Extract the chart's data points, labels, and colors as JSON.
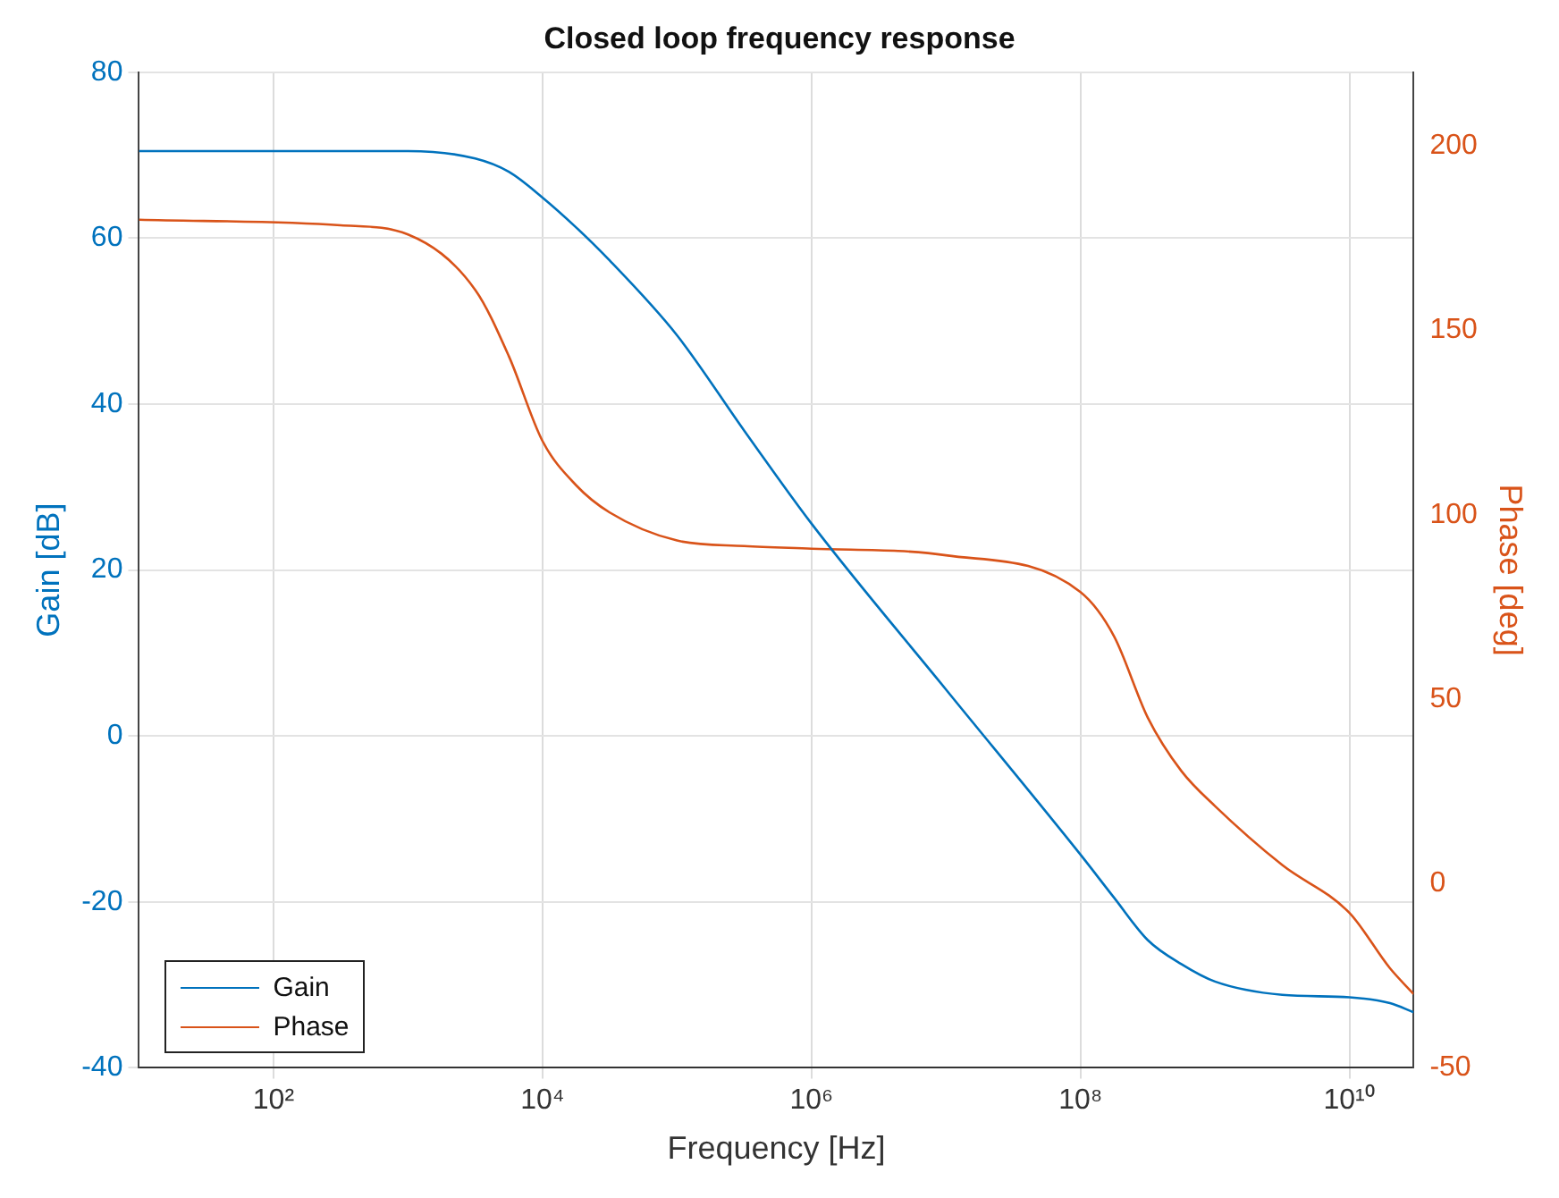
{
  "chart_data": {
    "type": "line",
    "title": "Closed loop frequency response",
    "xlabel": "Frequency [Hz]",
    "ylabel": "Gain [dB]",
    "y2label": "Phase [deg]",
    "x": [
      10,
      316,
      1000,
      3162,
      5623,
      10000,
      17783,
      31623,
      100000,
      316228,
      1000000,
      10000000,
      100000000,
      177828000,
      316228000,
      562341000,
      1000000000,
      3162280000,
      10000000000,
      20000000000,
      30000000000
    ],
    "series": [
      {
        "name": "Gain",
        "color": "#0072bd",
        "values": [
          70.5,
          70.5,
          70.5,
          69.6,
          68,
          64.9,
          61.3,
          57.3,
          48.3,
          36.8,
          25.6,
          5.6,
          -14.3,
          -19.5,
          -24.6,
          -27.5,
          -29.6,
          -31.2,
          -31.5,
          -32.2,
          -33.3
        ]
      },
      {
        "name": "Phase",
        "color": "#d95319",
        "axis": "y2",
        "values": [
          180,
          178.5,
          176,
          161,
          143,
          120,
          108,
          100.6,
          93,
          91.5,
          90.8,
          89,
          79,
          67,
          45,
          30.5,
          21,
          5,
          -8,
          -23,
          -30
        ]
      }
    ],
    "xlim": [
      10,
      30000000000
    ],
    "xticks": [
      {
        "value": 100,
        "label": "10²"
      },
      {
        "value": 10000,
        "label": "10⁴"
      },
      {
        "value": 1000000,
        "label": "10⁶"
      },
      {
        "value": 100000000,
        "label": "10⁸"
      },
      {
        "value": 10000000000,
        "label": "10¹⁰"
      }
    ],
    "ylim": [
      -40,
      80
    ],
    "yticks": [
      -40,
      -20,
      0,
      20,
      40,
      60,
      80
    ],
    "y2lim": [
      -50,
      220
    ],
    "y2ticks": [
      -50,
      0,
      50,
      100,
      150,
      200
    ],
    "log": "x",
    "grid": true,
    "legend": "bottom left"
  }
}
